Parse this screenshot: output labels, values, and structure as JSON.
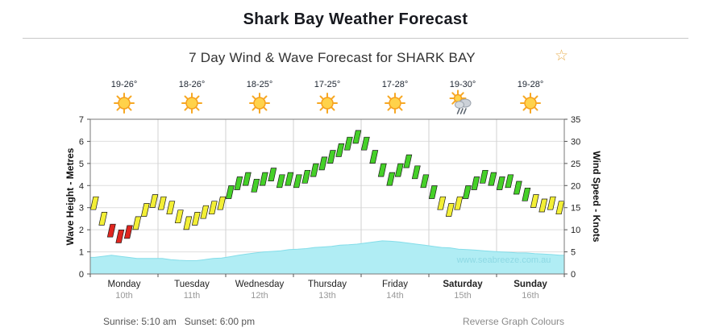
{
  "page": {
    "title": "Shark Bay Weather Forecast",
    "sunrise_label": "Sunrise: 5:10 am",
    "sunset_label": "Sunset: 6:00 pm",
    "reverse_link": "Reverse Graph Colours",
    "favorite_star_icon": "☆"
  },
  "chart_data": {
    "type": "line",
    "title": "7 Day Wind & Wave Forecast for SHARK BAY",
    "watermark": "www.seabreeze.com.au",
    "left_axis": {
      "label": "Wave Height - Metres",
      "min": 0,
      "max": 7,
      "ticks": [
        0,
        1,
        2,
        3,
        4,
        5,
        6,
        7
      ]
    },
    "right_axis": {
      "label": "Wind Speed - Knots",
      "min": 0,
      "max": 35,
      "ticks": [
        0,
        5,
        10,
        15,
        20,
        25,
        30,
        35
      ]
    },
    "points_per_day": 8,
    "days": [
      {
        "label": "Monday",
        "date": "10th",
        "temp": "19-26°",
        "icon": "sunny",
        "weekend": false
      },
      {
        "label": "Tuesday",
        "date": "11th",
        "temp": "18-26°",
        "icon": "sunny",
        "weekend": false
      },
      {
        "label": "Wednesday",
        "date": "12th",
        "temp": "18-25°",
        "icon": "sunny",
        "weekend": false
      },
      {
        "label": "Thursday",
        "date": "13th",
        "temp": "17-25°",
        "icon": "sunny",
        "weekend": false
      },
      {
        "label": "Friday",
        "date": "14th",
        "temp": "17-28°",
        "icon": "sunny",
        "weekend": false
      },
      {
        "label": "Saturday",
        "date": "15th",
        "temp": "19-30°",
        "icon": "rain",
        "weekend": true
      },
      {
        "label": "Sunday",
        "date": "16th",
        "temp": "19-28°",
        "icon": "sunny",
        "weekend": true
      }
    ],
    "wind_colors": {
      "light": "#e0261f",
      "moderate": "#f3ef36",
      "fresh": "#45d028"
    },
    "wind_thresholds": {
      "light_below": 10,
      "fresh_from": 18
    },
    "series": [
      {
        "name": "Wind Speed",
        "unit": "knots",
        "style": "wind-barbs",
        "axis": "right",
        "values": [
          16,
          12.5,
          9.8,
          8.5,
          9.5,
          11.5,
          14.5,
          16.5,
          16,
          15,
          13,
          11.5,
          12.5,
          14,
          15,
          16,
          18.5,
          20.5,
          21.5,
          20,
          21.5,
          22.5,
          21,
          21.5,
          21,
          22,
          23.5,
          25,
          26.5,
          28,
          29.5,
          31,
          29.5,
          26.5,
          23.5,
          21.5,
          23.5,
          25.5,
          23,
          21,
          18.5,
          16,
          14.5,
          16,
          18.5,
          20.5,
          22,
          21.5,
          20.5,
          21,
          19.5,
          18,
          16.5,
          15.5,
          16,
          15
        ]
      },
      {
        "name": "Wave Height",
        "unit": "metres",
        "style": "area",
        "axis": "left",
        "color": "#b0edf4",
        "edge_color": "#84dde9",
        "values": [
          0.75,
          0.8,
          0.85,
          0.8,
          0.75,
          0.7,
          0.7,
          0.7,
          0.7,
          0.65,
          0.62,
          0.6,
          0.6,
          0.65,
          0.7,
          0.72,
          0.78,
          0.85,
          0.9,
          0.95,
          1.0,
          1.02,
          1.05,
          1.1,
          1.12,
          1.15,
          1.2,
          1.22,
          1.25,
          1.3,
          1.32,
          1.35,
          1.4,
          1.45,
          1.5,
          1.48,
          1.45,
          1.4,
          1.35,
          1.3,
          1.25,
          1.2,
          1.18,
          1.12,
          1.1,
          1.08,
          1.05,
          1.02,
          1.0,
          0.98,
          0.95,
          0.95,
          0.92,
          0.9,
          0.88,
          0.85
        ]
      }
    ]
  }
}
